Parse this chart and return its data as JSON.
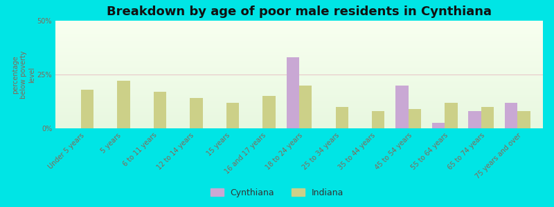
{
  "title": "Breakdown by age of poor male residents in Cynthiana",
  "ylabel": "percentage\nbelow poverty\nlevel",
  "categories": [
    "Under 5 years",
    "5 years",
    "6 to 11 years",
    "12 to 14 years",
    "15 years",
    "16 and 17 years",
    "18 to 24 years",
    "25 to 34 years",
    "35 to 44 years",
    "45 to 54 years",
    "55 to 64 years",
    "65 to 74 years",
    "75 years and over"
  ],
  "cynthiana": [
    0,
    0,
    0,
    0,
    0,
    0,
    33,
    0,
    0,
    20,
    2.5,
    8,
    12
  ],
  "indiana": [
    18,
    22,
    17,
    14,
    12,
    15,
    20,
    10,
    8,
    9,
    12,
    10,
    8
  ],
  "cynthiana_color": "#c9a8d4",
  "indiana_color": "#ccd088",
  "plot_bg_top": "#f8fff0",
  "plot_bg_bottom": "#e8f8e0",
  "ylim": [
    0,
    50
  ],
  "yticks": [
    0,
    25,
    50
  ],
  "ytick_labels": [
    "0%",
    "25%",
    "50%"
  ],
  "bar_width": 0.35,
  "title_fontsize": 13,
  "tick_fontsize": 7,
  "ylabel_fontsize": 7,
  "legend_labels": [
    "Cynthiana",
    "Indiana"
  ],
  "outer_bg": "#00e5e5",
  "grid25_color": "#e8c8c8",
  "tick_color": "#886655",
  "ylabel_color": "#886655"
}
